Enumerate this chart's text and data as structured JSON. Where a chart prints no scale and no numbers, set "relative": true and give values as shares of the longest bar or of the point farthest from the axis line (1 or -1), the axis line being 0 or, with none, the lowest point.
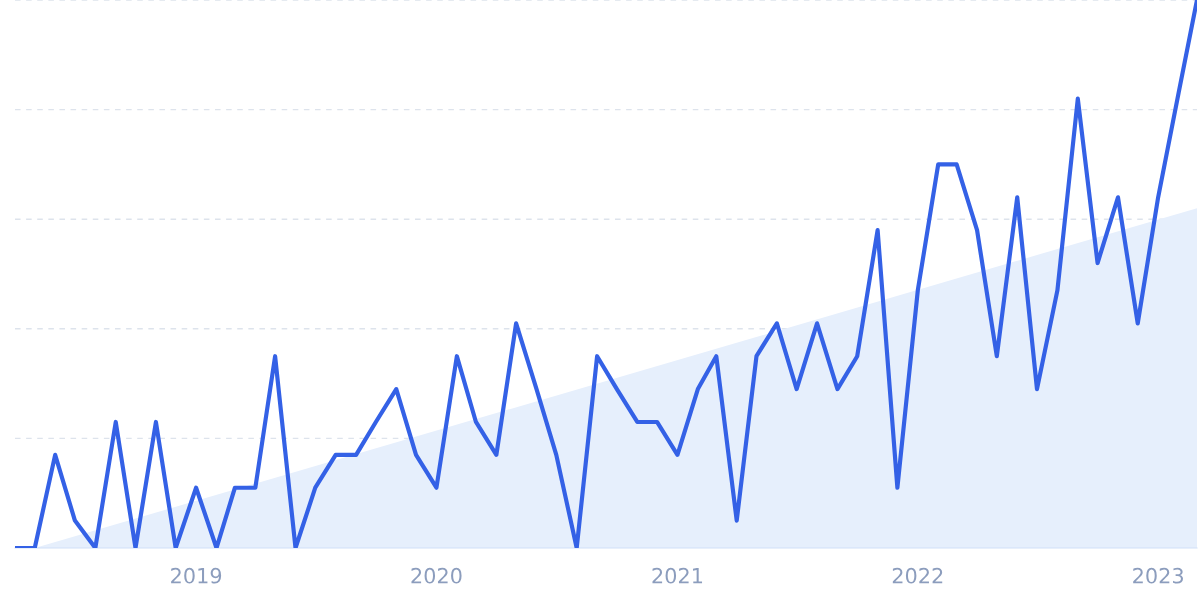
{
  "chart_data": {
    "type": "line",
    "relative": true,
    "grid": "y",
    "line_style": "solid",
    "marker": "none",
    "xlim": [
      "2018-04",
      "2023-03"
    ],
    "xticks": [
      "2019",
      "2020",
      "2021",
      "2022",
      "2023"
    ],
    "series": [
      {
        "type": "area",
        "color": "#e6effc",
        "x": [
          "2018-05",
          "2023-03"
        ],
        "values": [
          0,
          0.62
        ]
      },
      {
        "color": "#3461e6",
        "x": [
          "2018-04",
          "2018-05",
          "2018-06",
          "2018-07",
          "2018-08",
          "2018-09",
          "2018-10",
          "2018-11",
          "2018-12",
          "2019-01",
          "2019-02",
          "2019-03",
          "2019-04",
          "2019-05",
          "2019-06",
          "2019-07",
          "2019-08",
          "2019-09",
          "2019-10",
          "2019-11",
          "2019-12",
          "2020-01",
          "2020-02",
          "2020-03",
          "2020-04",
          "2020-05",
          "2020-06",
          "2020-07",
          "2020-08",
          "2020-09",
          "2020-10",
          "2020-11",
          "2020-12",
          "2021-01",
          "2021-02",
          "2021-03",
          "2021-04",
          "2021-05",
          "2021-06",
          "2021-07",
          "2021-08",
          "2021-09",
          "2021-10",
          "2021-11",
          "2021-12",
          "2022-01",
          "2022-02",
          "2022-03",
          "2022-04",
          "2022-05",
          "2022-06",
          "2022-07",
          "2022-08",
          "2022-09",
          "2022-10",
          "2022-11",
          "2022-12",
          "2023-01",
          "2023-02",
          "2023-03"
        ],
        "values": [
          0,
          0,
          0.17,
          0.05,
          0,
          0.23,
          0,
          0.23,
          0,
          0.11,
          0,
          0.11,
          0.11,
          0.35,
          0,
          0.11,
          0.17,
          0.17,
          0.23,
          0.29,
          0.17,
          0.11,
          0.35,
          0.23,
          0.17,
          0.41,
          0.29,
          0.17,
          0,
          0.35,
          0.29,
          0.23,
          0.23,
          0.17,
          0.29,
          0.35,
          0.05,
          0.35,
          0.41,
          0.29,
          0.41,
          0.29,
          0.35,
          0.58,
          0.11,
          0.47,
          0.7,
          0.7,
          0.58,
          0.35,
          0.64,
          0.29,
          0.47,
          0.82,
          0.52,
          0.64,
          0.41,
          0.64,
          0.83,
          1
        ]
      }
    ]
  }
}
